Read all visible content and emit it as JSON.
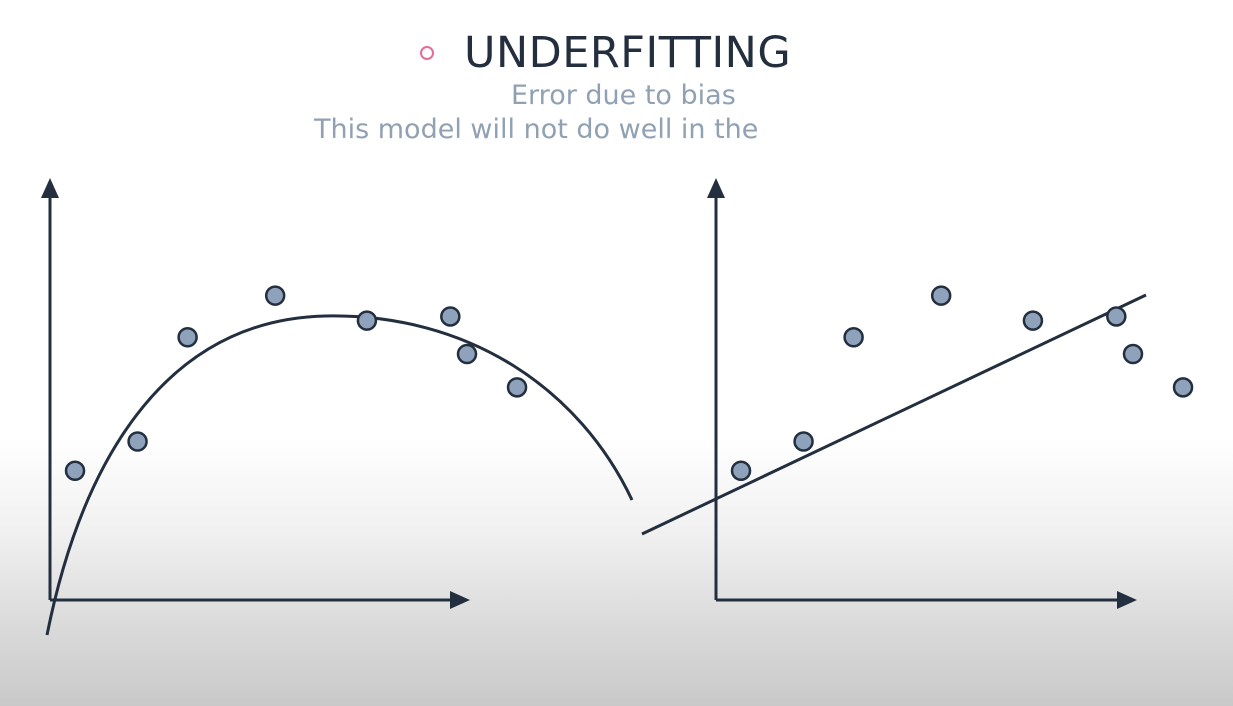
{
  "slide": {
    "title": "UNDERFITTING",
    "subtitle_line1": "Error due to bias",
    "subtitle_line2": "This model will not do well in the"
  },
  "colors": {
    "axis": "#232f3e",
    "point_fill": "#8ea3bb",
    "point_stroke": "#232f3e",
    "bullet": "#e56b9b",
    "subtitle": "#8fa1b3"
  },
  "chart_data": [
    {
      "type": "scatter",
      "title": "",
      "xlabel": "",
      "ylabel": "",
      "points": [
        {
          "x": 0.6,
          "y": 3.1
        },
        {
          "x": 2.1,
          "y": 3.8
        },
        {
          "x": 3.3,
          "y": 6.3
        },
        {
          "x": 5.4,
          "y": 7.3
        },
        {
          "x": 7.6,
          "y": 6.7
        },
        {
          "x": 9.6,
          "y": 6.8
        },
        {
          "x": 10.0,
          "y": 5.9
        },
        {
          "x": 11.2,
          "y": 5.1
        }
      ],
      "fit": {
        "type": "curve",
        "shape": "concave"
      }
    },
    {
      "type": "scatter",
      "title": "",
      "xlabel": "",
      "ylabel": "",
      "points": [
        {
          "x": 0.6,
          "y": 3.1
        },
        {
          "x": 2.1,
          "y": 3.8
        },
        {
          "x": 3.3,
          "y": 6.3
        },
        {
          "x": 5.4,
          "y": 7.3
        },
        {
          "x": 7.6,
          "y": 6.7
        },
        {
          "x": 9.6,
          "y": 6.8
        },
        {
          "x": 10.0,
          "y": 5.9
        },
        {
          "x": 11.2,
          "y": 5.1
        }
      ],
      "fit": {
        "type": "line"
      }
    }
  ]
}
